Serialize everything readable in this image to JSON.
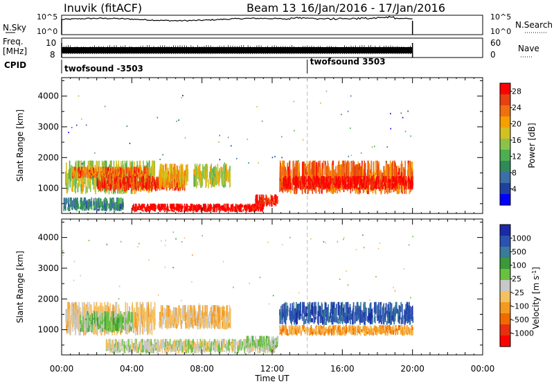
{
  "header": {
    "station": "Inuvik (fitACF)",
    "beam": "Beam 13",
    "dates": "16/Jan/2016 - 17/Jan/2016"
  },
  "top_panels": {
    "nsky_label": "N.Sky",
    "nsky_ticks": [
      "10^5",
      "10^0"
    ],
    "nsearch_label": "N.Search",
    "nsearch_ticks": [
      "10^5",
      "10^0"
    ],
    "freq_label": "Freq.",
    "freq_unit": "[MHz]",
    "freq_ticks": [
      "10",
      "8"
    ],
    "nave_label": "Nave",
    "nave_ticks": [
      "60",
      "0"
    ],
    "cpid_label": "CPID",
    "cpid_segments": [
      {
        "name": "twofsound -3503",
        "start_hour": 0
      },
      {
        "name": "twofsound 3503",
        "start_hour": 14
      }
    ]
  },
  "x_axis": {
    "label": "Time UT",
    "ticks": [
      "00:00",
      "04:00",
      "08:00",
      "12:00",
      "16:00",
      "20:00",
      "00:00"
    ],
    "tick_hours": [
      0,
      4,
      8,
      12,
      16,
      20,
      24
    ],
    "data_end_hour": 20
  },
  "colors": {
    "power": [
      "#0000ff",
      "#2040a0",
      "#3c6ea8",
      "#2e8b57",
      "#4caf50",
      "#8bc34a",
      "#d4c020",
      "#f5a000",
      "#f07010",
      "#e84010",
      "#ff0000"
    ],
    "velocity": [
      "#ff0000",
      "#e83010",
      "#f06a00",
      "#f59a20",
      "#f5c060",
      "#c8c8c8",
      "#6ac040",
      "#3a9a3a",
      "#3a7a9a",
      "#2a52b0",
      "#1a2aa8"
    ]
  },
  "chart_data": [
    {
      "type": "heatmap",
      "title": "",
      "xlabel": "Time UT",
      "ylabel": "Slant Range [km]",
      "xlim": [
        0,
        24
      ],
      "ylim": [
        180,
        4600
      ],
      "yticks": [
        1000,
        2000,
        3000,
        4000
      ],
      "colorbar": {
        "label": "Power [dB]",
        "ticks": [
          4,
          8,
          12,
          16,
          20,
          24,
          28
        ],
        "range": [
          0,
          30
        ]
      },
      "regions": [
        {
          "t0": 0.2,
          "t1": 5.3,
          "r0": 800,
          "r1": 1900,
          "value": 16
        },
        {
          "t0": 0.6,
          "t1": 5.0,
          "r0": 1300,
          "r1": 1700,
          "value": 24
        },
        {
          "t0": 2.0,
          "t1": 7.0,
          "r0": 900,
          "r1": 1400,
          "value": 26
        },
        {
          "t0": 5.5,
          "t1": 7.2,
          "r0": 1000,
          "r1": 1800,
          "value": 20
        },
        {
          "t0": 7.5,
          "t1": 9.6,
          "r0": 1000,
          "r1": 1800,
          "value": 17
        },
        {
          "t0": 4.0,
          "t1": 11.5,
          "r0": 220,
          "r1": 500,
          "value": 30
        },
        {
          "t0": 11.0,
          "t1": 12.3,
          "r0": 400,
          "r1": 800,
          "value": 27
        },
        {
          "t0": 12.4,
          "t1": 20.0,
          "r0": 800,
          "r1": 1900,
          "value": 24
        },
        {
          "t0": 12.6,
          "t1": 20.0,
          "r0": 950,
          "r1": 1400,
          "value": 29
        },
        {
          "t0": 0.1,
          "t1": 3.5,
          "r0": 250,
          "r1": 700,
          "value": 9
        }
      ]
    },
    {
      "type": "heatmap",
      "title": "",
      "xlabel": "Time UT",
      "ylabel": "Slant Range [km]",
      "xlim": [
        0,
        24
      ],
      "ylim": [
        180,
        4600
      ],
      "yticks": [
        1000,
        2000,
        3000,
        4000
      ],
      "colorbar": {
        "label": "Velocity [m s-1]",
        "ticks": [
          1000,
          500,
          100,
          25,
          -25,
          -100,
          -500,
          -1000
        ],
        "range": [
          -1300,
          1300
        ]
      },
      "regions": [
        {
          "t0": 0.2,
          "t1": 5.3,
          "r0": 800,
          "r1": 1900,
          "value": -200
        },
        {
          "t0": 1.0,
          "t1": 4.0,
          "r0": 900,
          "r1": 1600,
          "value": 200
        },
        {
          "t0": 5.5,
          "t1": 9.6,
          "r0": 1000,
          "r1": 1800,
          "value": -250
        },
        {
          "t0": 2.5,
          "t1": 12.2,
          "r0": 220,
          "r1": 700,
          "value": 0
        },
        {
          "t0": 10.5,
          "t1": 12.3,
          "r0": 400,
          "r1": 800,
          "value": 150
        },
        {
          "t0": 12.4,
          "t1": 20.0,
          "r0": 1150,
          "r1": 1900,
          "value": 900
        },
        {
          "t0": 12.4,
          "t1": 20.0,
          "r0": 800,
          "r1": 1150,
          "value": -400
        }
      ]
    }
  ]
}
